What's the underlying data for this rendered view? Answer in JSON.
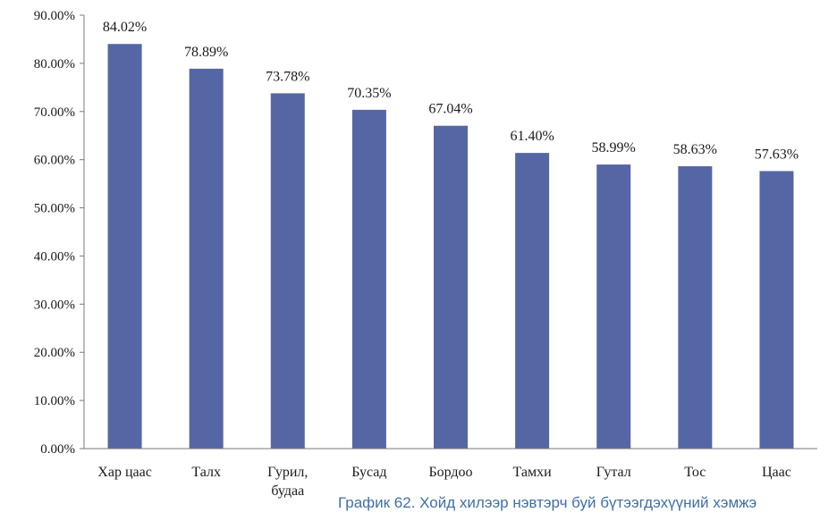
{
  "chart_data": {
    "type": "bar",
    "categories": [
      "Хар цаас",
      "Талх",
      "Гурил,\nбудаа",
      "Бусад",
      "Бордоо",
      "Тамхи",
      "Гутал",
      "Тос",
      "Цаас"
    ],
    "values": [
      84.02,
      78.89,
      73.78,
      70.35,
      67.04,
      61.4,
      58.99,
      58.63,
      57.63
    ],
    "data_labels": [
      "84.02%",
      "78.89%",
      "73.78%",
      "70.35%",
      "67.04%",
      "61.40%",
      "58.99%",
      "58.63%",
      "57.63%"
    ],
    "y_tick_labels": [
      "0.00%",
      "10.00%",
      "20.00%",
      "30.00%",
      "40.00%",
      "50.00%",
      "60.00%",
      "70.00%",
      "80.00%",
      "90.00%"
    ],
    "ylim": [
      0,
      90
    ],
    "grid": false,
    "legend": "none",
    "bar_color": "#5566a4",
    "caption": "График 62. Хойд хилээр нэвтэрч буй бүтээгдэхүүний хэмжэ"
  }
}
